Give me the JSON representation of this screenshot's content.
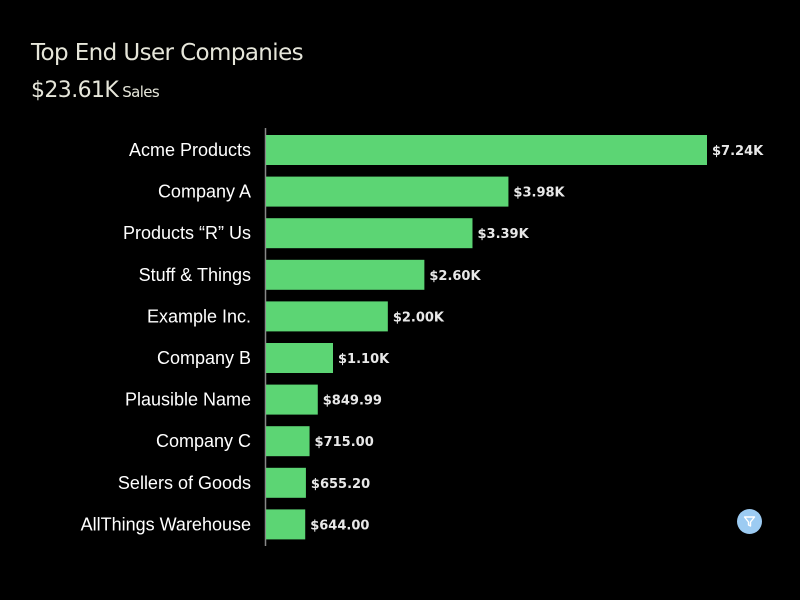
{
  "header": {
    "title": "Top End User Companies",
    "total_value": "$23.61K",
    "total_label": "Sales"
  },
  "filter_button": {
    "icon": "filter-icon",
    "color": "#9ccbf2"
  },
  "chart_data": {
    "type": "bar",
    "orientation": "horizontal",
    "title": "Top End User Companies",
    "bar_color": "#5cd574",
    "categories": [
      "Acme Products",
      "Company A",
      "Products “R” Us",
      "Stuff & Things",
      "Example Inc.",
      "Company B",
      "Plausible Name",
      "Company C",
      "Sellers of Goods",
      "AllThings Warehouse"
    ],
    "values": [
      7240,
      3980,
      3390,
      2600,
      2000,
      1100,
      849.99,
      715.0,
      655.2,
      644.0
    ],
    "data_labels": [
      "$7.24K",
      "$3.98K",
      "$3.39K",
      "$2.60K",
      "$2.00K",
      "$1.10K",
      "$849.99",
      "$715.00",
      "$655.20",
      "$644.00"
    ],
    "xlim": [
      0,
      7240
    ],
    "grid": false
  }
}
